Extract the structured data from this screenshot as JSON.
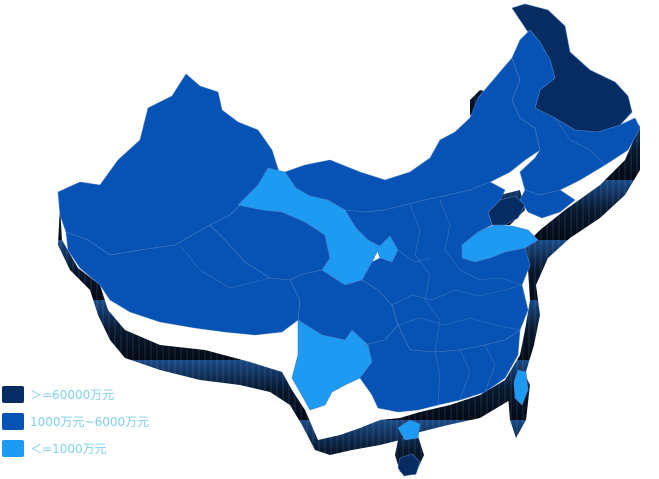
{
  "colors": {
    "high": "#062c62",
    "mid": "#0653b5",
    "low": "#1d9bf2",
    "shadow_dark": "#04142a",
    "shadow_light": "#8fb6d8",
    "border": "#4a7cc6",
    "legend_text": "#7fd0ee"
  },
  "legend": {
    "items": [
      {
        "label": "＞=60000万元",
        "level": "high"
      },
      {
        "label": "1000万元~6000万元",
        "level": "mid"
      },
      {
        "label": "＜=1000万元",
        "level": "low"
      }
    ]
  },
  "regions": [
    {
      "id": "heilongjiang",
      "level": "high"
    },
    {
      "id": "jilin",
      "level": "mid"
    },
    {
      "id": "liaoning",
      "level": "mid"
    },
    {
      "id": "inner-mongolia",
      "level": "mid"
    },
    {
      "id": "xinjiang",
      "level": "mid"
    },
    {
      "id": "tibet",
      "level": "mid"
    },
    {
      "id": "qinghai",
      "level": "mid"
    },
    {
      "id": "gansu",
      "level": "low"
    },
    {
      "id": "ningxia",
      "level": "low"
    },
    {
      "id": "sichuan",
      "level": "mid"
    },
    {
      "id": "yunnan",
      "level": "low"
    },
    {
      "id": "shandong",
      "level": "low"
    },
    {
      "id": "beijing-tianjin",
      "level": "high"
    },
    {
      "id": "east-central",
      "level": "mid"
    },
    {
      "id": "south",
      "level": "mid"
    },
    {
      "id": "guangdong-coast",
      "level": "low"
    },
    {
      "id": "taiwan",
      "level": "low"
    },
    {
      "id": "hainan",
      "level": "high"
    }
  ]
}
